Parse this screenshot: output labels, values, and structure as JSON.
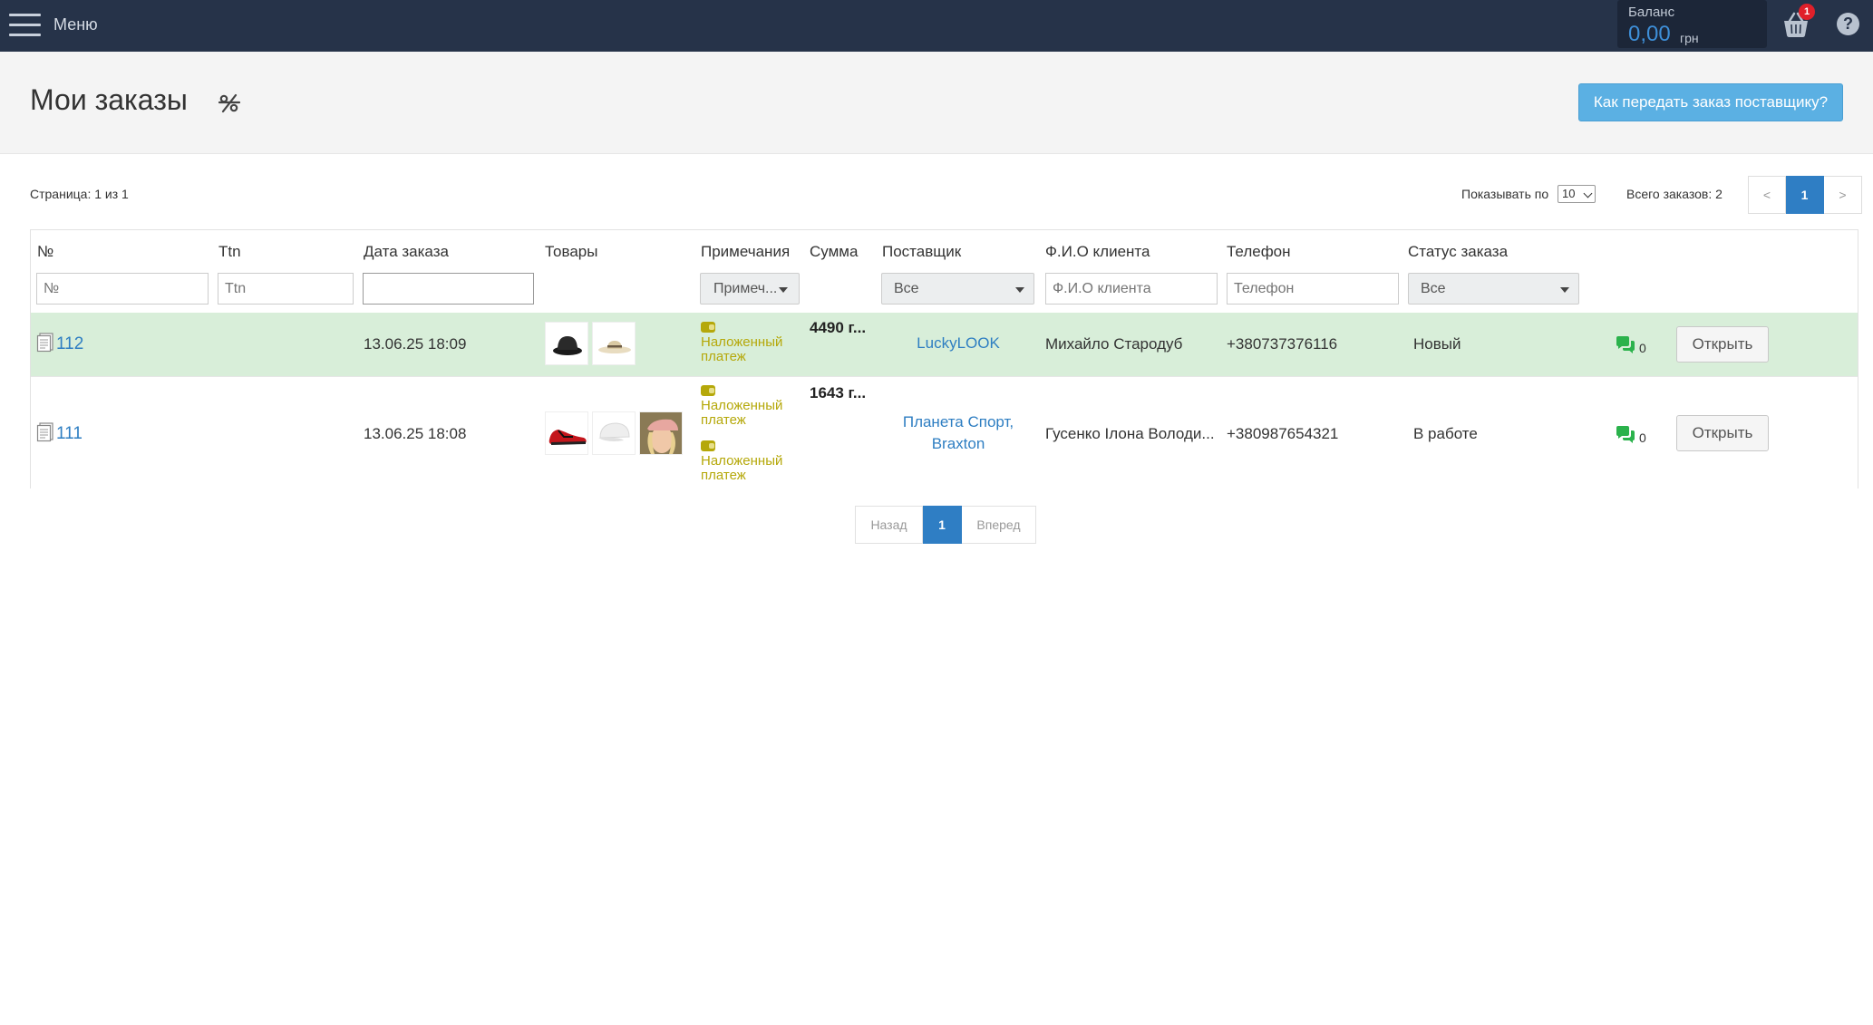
{
  "topbar": {
    "menu_label": "Меню",
    "balance_title": "Баланс",
    "balance_value": "0,00",
    "balance_currency": "грн",
    "cart_count": "1",
    "help_symbol": "?"
  },
  "header": {
    "title": "Мои заказы",
    "help_button": "Как передать заказ поставщику?"
  },
  "info": {
    "page_info": "Страница: 1 из 1",
    "show_by_label": "Показывать по",
    "show_by_value": "10",
    "total_orders": "Всего заказов: 2"
  },
  "pager_top": {
    "prev": "<",
    "current": "1",
    "next": ">"
  },
  "table": {
    "columns": {
      "num": "№",
      "ttn": "Ttn",
      "date": "Дата заказа",
      "goods": "Товары",
      "notes": "Примечания",
      "sum": "Сумма",
      "supplier": "Поставщик",
      "client": "Ф.И.О клиента",
      "phone": "Телефон",
      "status": "Статус заказа"
    },
    "filters": {
      "num_placeholder": "№",
      "ttn_placeholder": "Ttn",
      "date_value": "",
      "notes_select": "Примеч...",
      "supplier_select": "Все",
      "client_placeholder": "Ф.И.О клиента",
      "phone_placeholder": "Телефон",
      "status_select": "Все"
    },
    "rows": [
      {
        "num": "112",
        "date": "13.06.25 18:09",
        "note_1": "Наложенный платеж",
        "sum": "4490 г...",
        "supplier": "LuckyLOOK",
        "client": "Михайло Стародуб",
        "phone": "+380737376116",
        "status": "Новый",
        "comments": "0",
        "open": "Открыть",
        "highlight": "#d8eed9"
      },
      {
        "num": "111",
        "date": "13.06.25 18:08",
        "note_1": "Наложенный платеж",
        "note_2": "Наложенный платеж",
        "sum": "1643 г...",
        "supplier_line1": "Планета Спорт,",
        "supplier_line2": "Braxton",
        "client": "Гусенко Ілона Володи...",
        "phone": "+380987654321",
        "status": "В работе",
        "comments": "0",
        "open": "Открыть"
      }
    ]
  },
  "pager_bottom": {
    "prev": "Назад",
    "current": "1",
    "next": "Вперед"
  },
  "colors": {
    "topbar": "#263349",
    "accent": "#2f7ec4",
    "link": "#2e7ec2",
    "note": "#b5a80a",
    "chat": "#2bb24c",
    "help_button": "#5bb0e3"
  },
  "icons": [
    "hamburger-icon",
    "cart-icon",
    "help-icon",
    "percent-off-icon",
    "document-icon",
    "wallet-icon",
    "chat-icon",
    "chevron-down-icon"
  ]
}
